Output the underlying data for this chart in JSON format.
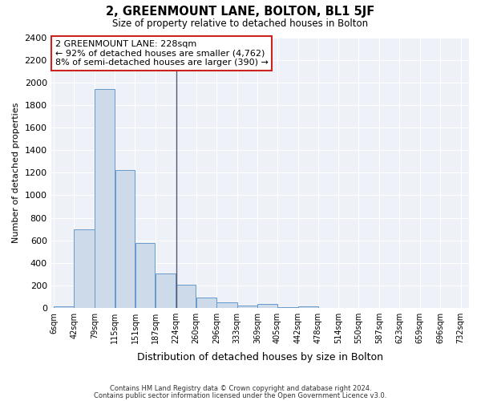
{
  "title": "2, GREENMOUNT LANE, BOLTON, BL1 5JF",
  "subtitle": "Size of property relative to detached houses in Bolton",
  "xlabel": "Distribution of detached houses by size in Bolton",
  "ylabel": "Number of detached properties",
  "bar_color": "#ccdaea",
  "bar_edge_color": "#6699cc",
  "bin_edges": [
    6,
    42,
    79,
    115,
    151,
    187,
    224,
    260,
    296,
    333,
    369,
    405,
    442,
    478,
    514,
    550,
    587,
    623,
    659,
    696,
    732
  ],
  "bin_labels": [
    "6sqm",
    "42sqm",
    "79sqm",
    "115sqm",
    "151sqm",
    "187sqm",
    "224sqm",
    "260sqm",
    "296sqm",
    "333sqm",
    "369sqm",
    "405sqm",
    "442sqm",
    "478sqm",
    "514sqm",
    "550sqm",
    "587sqm",
    "623sqm",
    "659sqm",
    "696sqm",
    "732sqm"
  ],
  "bar_heights": [
    15,
    700,
    1940,
    1225,
    575,
    310,
    205,
    90,
    50,
    25,
    35,
    5,
    15,
    2,
    3,
    0,
    0,
    0,
    0,
    0
  ],
  "ylim": [
    0,
    2400
  ],
  "yticks": [
    0,
    200,
    400,
    600,
    800,
    1000,
    1200,
    1400,
    1600,
    1800,
    2000,
    2200,
    2400
  ],
  "property_size": 228,
  "property_label": "2 GREENMOUNT LANE: 228sqm",
  "annotation_line1": "← 92% of detached houses are smaller (4,762)",
  "annotation_line2": "8% of semi-detached houses are larger (390) →",
  "vline_color": "#555577",
  "annotation_box_edge_color": "#cc2222",
  "footer1": "Contains HM Land Registry data © Crown copyright and database right 2024.",
  "footer2": "Contains public sector information licensed under the Open Government Licence v3.0.",
  "background_color": "#ffffff",
  "plot_bg_color": "#eef2f8",
  "grid_color": "#ffffff"
}
